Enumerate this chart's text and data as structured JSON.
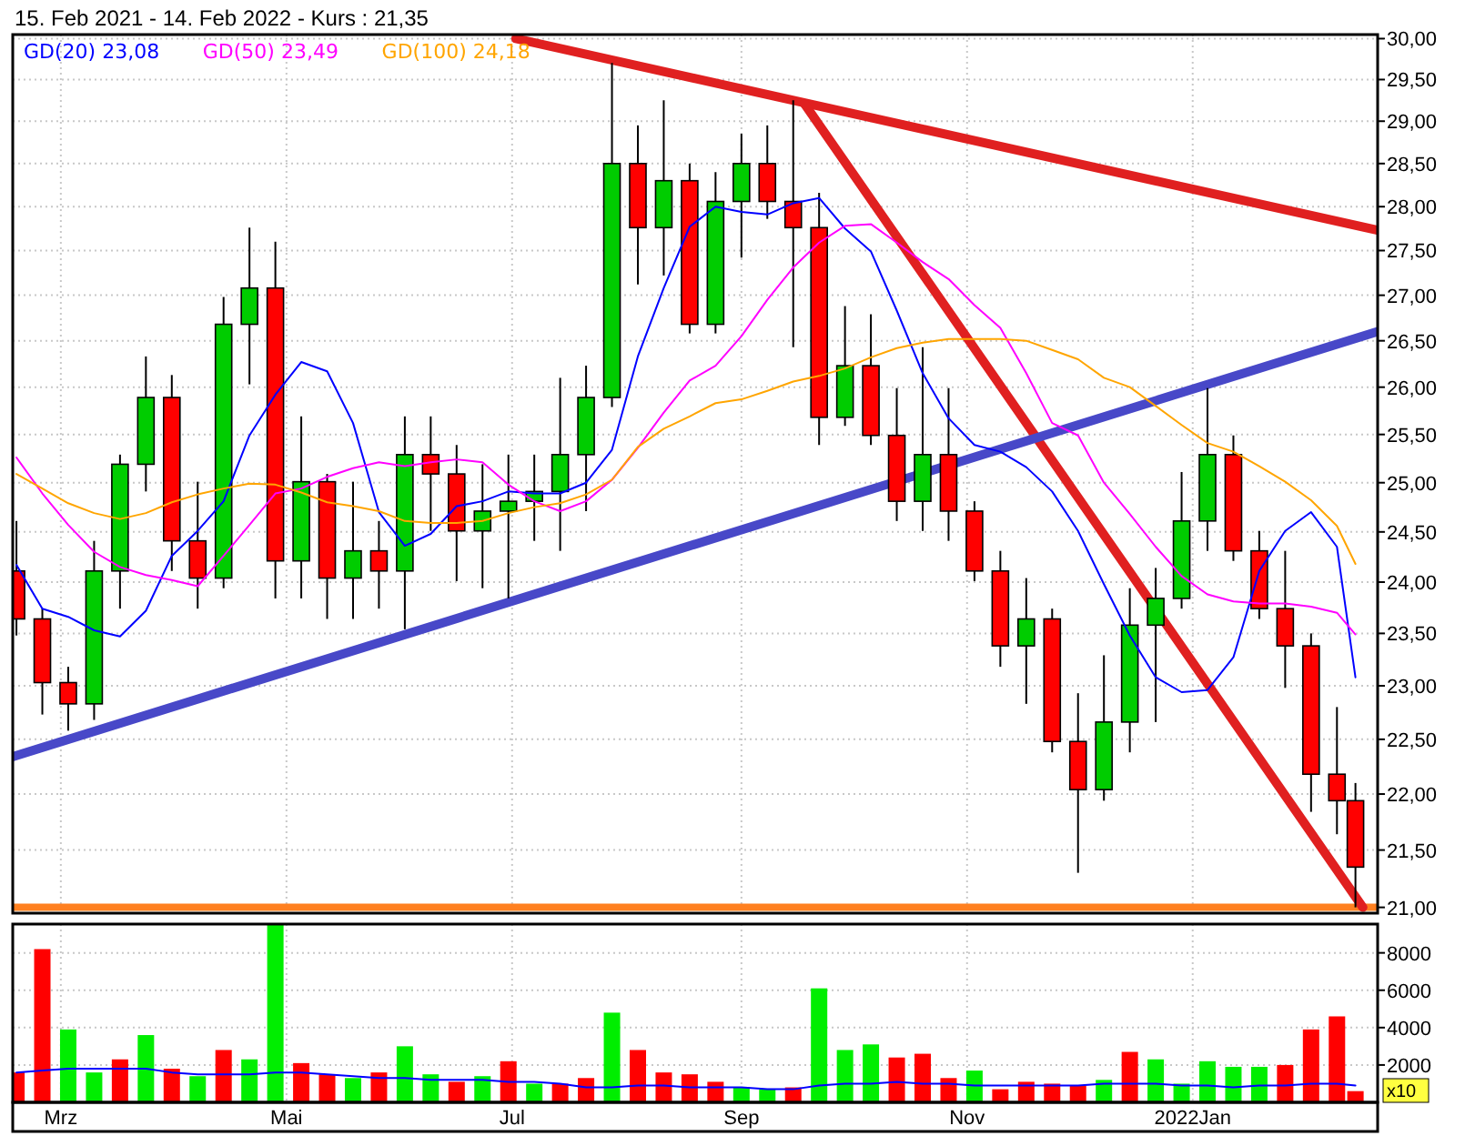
{
  "chart_data": [
    {
      "type": "candlestick",
      "title": "15. Feb 2021 - 14. Feb 2022 - Kurs : 21,35",
      "log": true,
      "grid": true,
      "legend": "top left",
      "tick_labels": "y",
      "x": [
        "2021-02-17",
        "2021-02-24",
        "2021-03-03",
        "2021-03-10",
        "2021-03-17",
        "2021-03-24",
        "2021-03-31",
        "2021-04-07",
        "2021-04-14",
        "2021-04-21",
        "2021-04-28",
        "2021-05-05",
        "2021-05-12",
        "2021-05-19",
        "2021-05-26",
        "2021-06-02",
        "2021-06-09",
        "2021-06-16",
        "2021-06-23",
        "2021-06-30",
        "2021-07-07",
        "2021-07-14",
        "2021-07-21",
        "2021-07-28",
        "2021-08-04",
        "2021-08-11",
        "2021-08-18",
        "2021-08-25",
        "2021-09-01",
        "2021-09-08",
        "2021-09-15",
        "2021-09-22",
        "2021-09-29",
        "2021-10-06",
        "2021-10-13",
        "2021-10-20",
        "2021-10-27",
        "2021-11-03",
        "2021-11-10",
        "2021-11-17",
        "2021-11-24",
        "2021-12-01",
        "2021-12-08",
        "2021-12-15",
        "2021-12-22",
        "2021-12-29",
        "2022-01-05",
        "2022-01-12",
        "2022-01-19",
        "2022-01-26",
        "2022-02-02",
        "2022-02-09",
        "2022-02-14"
      ],
      "ohlc": [
        [
          24.11,
          24.61,
          23.48,
          23.64
        ],
        [
          23.64,
          23.74,
          22.73,
          23.03
        ],
        [
          23.03,
          23.18,
          22.58,
          22.83
        ],
        [
          22.83,
          24.41,
          22.68,
          24.11
        ],
        [
          24.11,
          25.29,
          23.74,
          25.19
        ],
        [
          25.19,
          26.33,
          24.91,
          25.89
        ],
        [
          25.89,
          26.13,
          24.11,
          24.41
        ],
        [
          24.41,
          25.01,
          23.74,
          24.04
        ],
        [
          24.04,
          26.98,
          23.94,
          26.68
        ],
        [
          26.68,
          27.76,
          26.03,
          27.08
        ],
        [
          27.08,
          27.6,
          23.84,
          24.21
        ],
        [
          24.21,
          25.69,
          23.84,
          25.01
        ],
        [
          25.01,
          25.09,
          23.64,
          24.04
        ],
        [
          24.04,
          25.01,
          23.64,
          24.31
        ],
        [
          24.31,
          24.61,
          23.74,
          24.11
        ],
        [
          24.11,
          25.69,
          23.54,
          25.29
        ],
        [
          25.29,
          25.69,
          24.51,
          25.09
        ],
        [
          25.09,
          25.39,
          24.01,
          24.51
        ],
        [
          24.51,
          25.19,
          23.94,
          24.71
        ],
        [
          24.71,
          25.29,
          23.84,
          24.81
        ],
        [
          24.81,
          25.29,
          24.41,
          24.91
        ],
        [
          24.91,
          26.1,
          24.31,
          25.29
        ],
        [
          25.29,
          26.23,
          24.71,
          25.89
        ],
        [
          25.89,
          29.7,
          25.79,
          28.5
        ],
        [
          28.5,
          28.95,
          27.12,
          27.76
        ],
        [
          27.76,
          29.25,
          27.22,
          28.3
        ],
        [
          28.3,
          28.5,
          26.58,
          26.68
        ],
        [
          26.68,
          28.4,
          26.58,
          28.06
        ],
        [
          28.06,
          28.85,
          27.42,
          28.5
        ],
        [
          28.5,
          28.95,
          27.86,
          28.06
        ],
        [
          28.06,
          29.25,
          26.43,
          27.76
        ],
        [
          27.76,
          28.16,
          25.39,
          25.68
        ],
        [
          25.68,
          26.88,
          25.59,
          26.23
        ],
        [
          26.23,
          26.79,
          25.39,
          25.49
        ],
        [
          25.49,
          25.99,
          24.61,
          24.81
        ],
        [
          24.81,
          26.43,
          24.51,
          25.29
        ],
        [
          25.29,
          25.99,
          24.41,
          24.71
        ],
        [
          24.71,
          24.81,
          24.01,
          24.11
        ],
        [
          24.11,
          24.31,
          23.18,
          23.38
        ],
        [
          23.38,
          24.04,
          22.83,
          23.64
        ],
        [
          23.64,
          23.74,
          22.38,
          22.48
        ],
        [
          22.48,
          22.93,
          21.3,
          22.04
        ],
        [
          22.04,
          23.29,
          21.94,
          22.66
        ],
        [
          22.66,
          23.94,
          22.38,
          23.58
        ],
        [
          23.58,
          24.14,
          22.66,
          23.84
        ],
        [
          23.84,
          25.11,
          23.74,
          24.61
        ],
        [
          24.61,
          25.99,
          24.31,
          25.29
        ],
        [
          25.29,
          25.49,
          24.21,
          24.31
        ],
        [
          24.31,
          24.51,
          23.64,
          23.74
        ],
        [
          23.74,
          24.31,
          22.98,
          23.38
        ],
        [
          23.38,
          23.5,
          21.84,
          22.18
        ],
        [
          22.18,
          22.8,
          21.64,
          21.94
        ],
        [
          21.94,
          22.1,
          21.0,
          21.35
        ]
      ],
      "colors": [
        "#ff0000",
        "#ff0000",
        "#ff0000",
        "#00cc00",
        "#00cc00",
        "#00cc00",
        "#ff0000",
        "#ff0000",
        "#00cc00",
        "#00cc00",
        "#ff0000",
        "#00cc00",
        "#ff0000",
        "#00cc00",
        "#ff0000",
        "#00cc00",
        "#ff0000",
        "#ff0000",
        "#00cc00",
        "#00cc00",
        "#00cc00",
        "#00cc00",
        "#00cc00",
        "#00cc00",
        "#ff0000",
        "#00cc00",
        "#ff0000",
        "#00cc00",
        "#00cc00",
        "#ff0000",
        "#ff0000",
        "#ff0000",
        "#00cc00",
        "#ff0000",
        "#ff0000",
        "#00cc00",
        "#ff0000",
        "#ff0000",
        "#ff0000",
        "#00cc00",
        "#ff0000",
        "#ff0000",
        "#00cc00",
        "#00cc00",
        "#00cc00",
        "#00cc00",
        "#00cc00",
        "#ff0000",
        "#ff0000",
        "#ff0000",
        "#ff0000",
        "#ff0000",
        "#ff0000"
      ],
      "series": [
        {
          "name": "GD(20) 23,08",
          "type": "line",
          "color": "#0000ff",
          "values": [
            24.17,
            23.74,
            23.66,
            23.53,
            23.47,
            23.72,
            24.26,
            24.51,
            24.81,
            25.49,
            25.92,
            26.27,
            26.17,
            25.62,
            24.7,
            24.36,
            24.48,
            24.76,
            24.81,
            24.91,
            24.89,
            24.89,
            25.0,
            25.34,
            26.33,
            27.08,
            27.77,
            28.0,
            27.94,
            27.91,
            28.04,
            28.1,
            27.75,
            27.49,
            26.83,
            26.15,
            25.67,
            25.39,
            25.32,
            25.16,
            24.91,
            24.51,
            23.98,
            23.48,
            23.08,
            22.94,
            22.96,
            23.27,
            24.11,
            24.51,
            24.7,
            24.35,
            23.08
          ]
        },
        {
          "name": "GD(50) 23,49",
          "type": "line",
          "color": "#ff00ff",
          "values": [
            25.26,
            24.89,
            24.57,
            24.3,
            24.15,
            24.07,
            24.02,
            23.96,
            24.26,
            24.57,
            24.89,
            24.94,
            25.06,
            25.15,
            25.21,
            25.17,
            25.21,
            25.24,
            25.21,
            24.98,
            24.81,
            24.71,
            24.81,
            25.03,
            25.36,
            25.73,
            26.07,
            26.23,
            26.55,
            26.95,
            27.31,
            27.59,
            27.78,
            27.8,
            27.59,
            27.37,
            27.18,
            26.89,
            26.64,
            26.15,
            25.62,
            25.49,
            25.0,
            24.68,
            24.35,
            24.06,
            23.88,
            23.81,
            23.79,
            23.79,
            23.76,
            23.7,
            23.49
          ]
        },
        {
          "name": "GD(100) 24,18",
          "type": "line",
          "color": "#ffa500",
          "values": [
            25.09,
            24.94,
            24.79,
            24.69,
            24.63,
            24.69,
            24.8,
            24.88,
            24.94,
            24.99,
            24.98,
            24.9,
            24.8,
            24.76,
            24.71,
            24.61,
            24.59,
            24.59,
            24.61,
            24.69,
            24.75,
            24.79,
            24.88,
            25.03,
            25.37,
            25.56,
            25.69,
            25.83,
            25.87,
            25.96,
            26.06,
            26.12,
            26.2,
            26.32,
            26.42,
            26.48,
            26.52,
            26.52,
            26.52,
            26.5,
            26.4,
            26.3,
            26.1,
            26.0,
            25.8,
            25.6,
            25.41,
            25.32,
            25.17,
            25.01,
            24.82,
            24.56,
            24.18
          ]
        },
        {
          "type": "line",
          "color": "#e02020",
          "x": [
            "2021-07-02",
            "2022-02-20"
          ],
          "values": [
            30.0,
            27.73
          ]
        },
        {
          "type": "line",
          "color": "#e02020",
          "x": [
            "2021-09-18",
            "2022-02-16"
          ],
          "values": [
            29.21,
            21.0
          ]
        },
        {
          "type": "line",
          "color": "#4848c8",
          "x": [
            "2021-02-16",
            "2022-02-20"
          ],
          "values": [
            22.34,
            26.6
          ]
        }
      ],
      "ref_lines": [
        {
          "axis": "y",
          "value": 21.0,
          "color": "#ff8020"
        }
      ],
      "xlim": [
        "2021-02-16",
        "2022-02-20"
      ],
      "xticks": [
        {
          "value": "2021-03-01",
          "label": null
        },
        {
          "value": "2021-05-01",
          "label": null
        },
        {
          "value": "2021-07-01",
          "label": null
        },
        {
          "value": "2021-09-01",
          "label": null
        },
        {
          "value": "2021-11-01",
          "label": null
        },
        {
          "value": "2022-01-01",
          "label": null
        }
      ],
      "ylim": [
        20.95,
        30.05
      ],
      "yticks": [
        {
          "value": 21,
          "label": "21,00"
        },
        {
          "value": 21.5,
          "label": "21,50"
        },
        {
          "value": 22,
          "label": "22,00"
        },
        {
          "value": 22.5,
          "label": "22,50"
        },
        {
          "value": 23,
          "label": "23,00"
        },
        {
          "value": 23.5,
          "label": "23,50"
        },
        {
          "value": 24,
          "label": "24,00"
        },
        {
          "value": 24.5,
          "label": "24,50"
        },
        {
          "value": 25,
          "label": "25,00"
        },
        {
          "value": 25.5,
          "label": "25,50"
        },
        {
          "value": 26,
          "label": "26,00"
        },
        {
          "value": 26.5,
          "label": "26,50"
        },
        {
          "value": 27,
          "label": "27,00"
        },
        {
          "value": 27.5,
          "label": "27,50"
        },
        {
          "value": 28,
          "label": "28,00"
        },
        {
          "value": 28.5,
          "label": "28,50"
        },
        {
          "value": 29,
          "label": "29,00"
        },
        {
          "value": 29.5,
          "label": "29,50"
        },
        {
          "value": 30,
          "label": "30,00"
        }
      ]
    },
    {
      "type": "bar",
      "grid": true,
      "annotations": [
        "x10"
      ],
      "x": [
        "2021-02-17",
        "2021-02-24",
        "2021-03-03",
        "2021-03-10",
        "2021-03-17",
        "2021-03-24",
        "2021-03-31",
        "2021-04-07",
        "2021-04-14",
        "2021-04-21",
        "2021-04-28",
        "2021-05-05",
        "2021-05-12",
        "2021-05-19",
        "2021-05-26",
        "2021-06-02",
        "2021-06-09",
        "2021-06-16",
        "2021-06-23",
        "2021-06-30",
        "2021-07-07",
        "2021-07-14",
        "2021-07-21",
        "2021-07-28",
        "2021-08-04",
        "2021-08-11",
        "2021-08-18",
        "2021-08-25",
        "2021-09-01",
        "2021-09-08",
        "2021-09-15",
        "2021-09-22",
        "2021-09-29",
        "2021-10-06",
        "2021-10-13",
        "2021-10-20",
        "2021-10-27",
        "2021-11-03",
        "2021-11-10",
        "2021-11-17",
        "2021-11-24",
        "2021-12-01",
        "2021-12-08",
        "2021-12-15",
        "2021-12-22",
        "2021-12-29",
        "2022-01-05",
        "2022-01-12",
        "2022-01-19",
        "2022-01-26",
        "2022-02-02",
        "2022-02-09",
        "2022-02-14"
      ],
      "values": [
        1600,
        8200,
        3900,
        1600,
        2300,
        3600,
        1800,
        1400,
        2800,
        2300,
        9500,
        2100,
        1500,
        1300,
        1600,
        3000,
        1500,
        1100,
        1400,
        2200,
        1000,
        1000,
        1300,
        4800,
        2800,
        1600,
        1500,
        1100,
        800,
        700,
        800,
        6100,
        2800,
        3100,
        2400,
        2600,
        1300,
        1700,
        700,
        1100,
        1000,
        900,
        1200,
        2700,
        2300,
        1000,
        2200,
        1900,
        1900,
        2000,
        3900,
        4600,
        600
      ],
      "colors": [
        "#ff0000",
        "#ff0000",
        "#00ee00",
        "#00ee00",
        "#ff0000",
        "#00ee00",
        "#ff0000",
        "#00ee00",
        "#ff0000",
        "#00ee00",
        "#00ee00",
        "#ff0000",
        "#ff0000",
        "#00ee00",
        "#ff0000",
        "#00ee00",
        "#00ee00",
        "#ff0000",
        "#00ee00",
        "#ff0000",
        "#00ee00",
        "#ff0000",
        "#ff0000",
        "#00ee00",
        "#ff0000",
        "#ff0000",
        "#ff0000",
        "#ff0000",
        "#00ee00",
        "#00ee00",
        "#ff0000",
        "#00ee00",
        "#00ee00",
        "#00ee00",
        "#ff0000",
        "#ff0000",
        "#ff0000",
        "#00ee00",
        "#ff0000",
        "#ff0000",
        "#ff0000",
        "#ff0000",
        "#00ee00",
        "#ff0000",
        "#00ee00",
        "#00ee00",
        "#00ee00",
        "#00ee00",
        "#00ee00",
        "#ff0000",
        "#ff0000",
        "#ff0000",
        "#ff0000"
      ],
      "series": [
        {
          "type": "line",
          "color": "#0000ff",
          "values": [
            1600,
            1700,
            1800,
            1800,
            1800,
            1800,
            1600,
            1500,
            1500,
            1500,
            1600,
            1600,
            1500,
            1400,
            1300,
            1300,
            1200,
            1200,
            1200,
            1100,
            1100,
            1000,
            800,
            800,
            900,
            900,
            800,
            800,
            800,
            700,
            700,
            900,
            1000,
            1000,
            1100,
            1000,
            1000,
            900,
            900,
            900,
            900,
            900,
            1000,
            1000,
            1000,
            900,
            900,
            800,
            900,
            900,
            1000,
            1000,
            900
          ]
        }
      ],
      "xlim": [
        "2021-02-16",
        "2022-02-20"
      ],
      "xticks": [
        {
          "value": "2021-03-01",
          "label": "Mrz"
        },
        {
          "value": "2021-05-01",
          "label": "Mai"
        },
        {
          "value": "2021-07-01",
          "label": "Jul"
        },
        {
          "value": "2021-09-01",
          "label": "Sep"
        },
        {
          "value": "2021-11-01",
          "label": "Nov"
        },
        {
          "value": "2022-01-01",
          "label": "2022Jan"
        }
      ],
      "ylim": [
        0,
        9540
      ],
      "yticks": [
        2000,
        4000,
        6000,
        8000
      ]
    }
  ]
}
